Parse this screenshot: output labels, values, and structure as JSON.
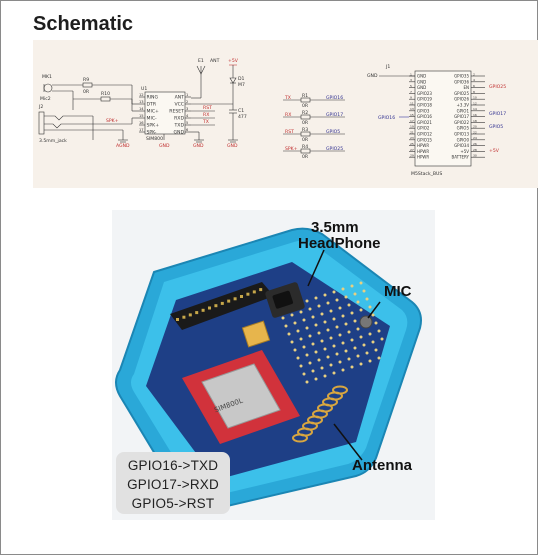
{
  "page": {
    "title": "Schematic"
  },
  "schematic": {
    "mic": {
      "ref": "MK1",
      "value": "Mic2"
    },
    "resistor_r9": {
      "ref": "R9",
      "value": "0R"
    },
    "resistor_r10": {
      "ref": "R10",
      "value": "0R"
    },
    "jack": {
      "ref": "J2",
      "value": "3.5mm_jack"
    },
    "ic": {
      "ref": "U1",
      "part": "SIM800",
      "left_pins": [
        {
          "num": "12",
          "name": "RING"
        },
        {
          "num": "13",
          "name": "DTR"
        },
        {
          "num": "14",
          "name": "MIC+"
        },
        {
          "num": "15",
          "name": "MIC-"
        },
        {
          "num": "16",
          "name": "SPK+"
        },
        {
          "num": "17",
          "name": "SPK-"
        }
      ],
      "right_pins": [
        {
          "num": "1",
          "name": "ANT"
        },
        {
          "num": "2",
          "name": "VCC"
        },
        {
          "num": "3",
          "name": "RESET"
        },
        {
          "num": "4",
          "name": "RXD"
        },
        {
          "num": "5",
          "name": "TXD"
        },
        {
          "num": "6",
          "name": "GND"
        }
      ]
    },
    "antenna": {
      "ref": "E1",
      "value": "ANT"
    },
    "power": {
      "label": "+5V"
    },
    "diode": {
      "ref": "D1",
      "value": "M7"
    },
    "capacitor": {
      "ref": "C1",
      "value": "477"
    },
    "nets_near_ic": [
      "RST",
      "RX",
      "TX"
    ],
    "spk_net": "SPK+",
    "gnd_labels": [
      "AGND",
      "GND",
      "GND",
      "GND"
    ],
    "series_resistors": [
      {
        "net": "TX",
        "ref": "R1",
        "value": "0R",
        "gpio": "GPIO16"
      },
      {
        "net": "RX",
        "ref": "R2",
        "value": "0R",
        "gpio": "GPIO17"
      },
      {
        "net": "RST",
        "ref": "R3",
        "value": "0R",
        "gpio": "GPIO5"
      },
      {
        "net": "SPK+",
        "ref": "R4",
        "value": "0R",
        "gpio": "GPIO25"
      }
    ],
    "bus": {
      "ref": "J1",
      "name": "M5Stack_BUS",
      "gnd_label": "GND",
      "left_pins": [
        "GND",
        "GND",
        "GND",
        "GPIO23",
        "GPIO19",
        "GPIO18",
        "GPIO3",
        "GPIO16",
        "GPIO21",
        "GPIO2",
        "GPIO12",
        "GPIO15",
        "HPWR",
        "HPWR",
        "HPWR"
      ],
      "right_pins": [
        "GPIO35",
        "GPIO36",
        "EN",
        "GPIO25",
        "GPIO26",
        "+3.3V",
        "GPIO1",
        "GPIO17",
        "GPIO22",
        "GPIO5",
        "GPIO13",
        "GPIO0",
        "GPIO34",
        "+5V",
        "BATTERY"
      ],
      "ext_left": "GPIO16",
      "ext_right": [
        "GPIO25",
        "GPIO17",
        "GPIO5",
        "+5V"
      ]
    }
  },
  "photo": {
    "callouts": {
      "headphone_line1": "3.5mm",
      "headphone_line2": "HeadPhone",
      "mic": "MIC",
      "antenna": "Antenna"
    },
    "module_label": "SIM800L"
  },
  "gpio_box": {
    "lines": [
      "GPIO16->TXD",
      "GPIO17->RXD",
      "GPIO5->RST"
    ]
  }
}
